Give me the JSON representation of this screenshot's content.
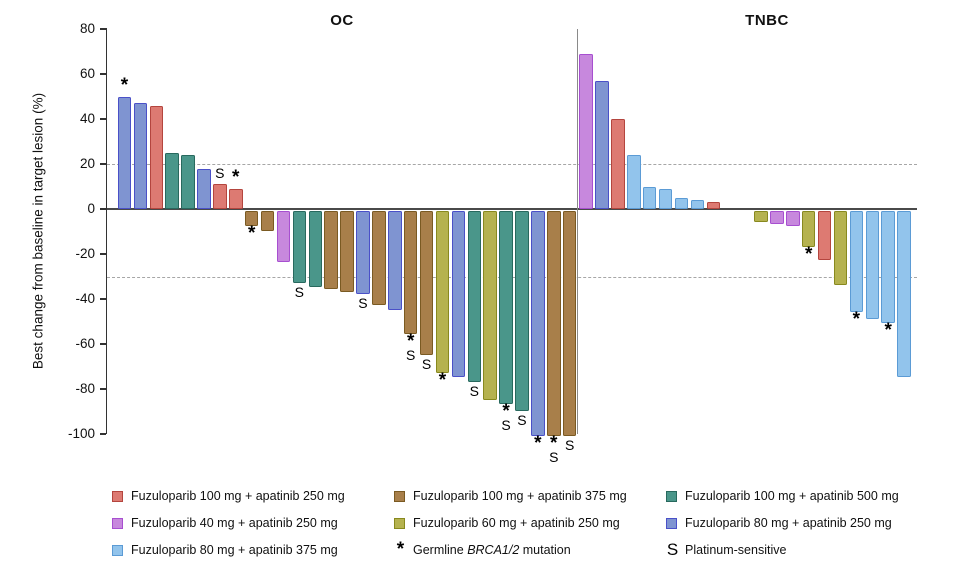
{
  "titles": {
    "left": "OC",
    "right": "TNBC"
  },
  "y_axis": {
    "label": "Best change from baseline in target lesion (%)",
    "ticks": [
      80,
      60,
      40,
      20,
      0,
      -20,
      -40,
      -60,
      -80,
      -100
    ]
  },
  "reference_lines": [
    20,
    -30
  ],
  "doses": {
    "f100a250": {
      "label": "Fuzuloparib 100 mg + apatinib 250 mg",
      "fill": "#dd7a72",
      "border": "#b4453e"
    },
    "f40a250": {
      "label": "Fuzuloparib 40 mg + apatinib 250 mg",
      "fill": "#c788dd",
      "border": "#a74fd0"
    },
    "f80a375": {
      "label": "Fuzuloparib 80 mg + apatinib 375 mg",
      "fill": "#92c4ec",
      "border": "#5b9bd5"
    },
    "f100a375": {
      "label": "Fuzuloparib 100 mg + apatinib 375 mg",
      "fill": "#a87f4a",
      "border": "#7a5a22"
    },
    "f60a250": {
      "label": "Fuzuloparib 60 mg + apatinib 250 mg",
      "fill": "#b5b24f",
      "border": "#88891e"
    },
    "f100a500": {
      "label": "Fuzuloparib 100 mg + apatinib 500 mg",
      "fill": "#4a968a",
      "border": "#28695e"
    },
    "f80a250": {
      "label": "Fuzuloparib 80 mg + apatinib 250 mg",
      "fill": "#7f94d1",
      "border": "#4a50c8"
    }
  },
  "markers": {
    "brca": {
      "symbol": "*",
      "label_prefix": "Germline ",
      "label_italic": "BRCA1/2",
      "label_suffix": " mutation"
    },
    "platinum": {
      "symbol": "S",
      "label": "Platinum-sensitive"
    }
  },
  "legend_columns": [
    [
      "f100a250",
      "f40a250",
      "f80a375"
    ],
    [
      "f100a375",
      "f60a250",
      "marker:brca"
    ],
    [
      "f100a500",
      "f80a250",
      "marker:platinum"
    ]
  ],
  "chart_data": {
    "type": "bar",
    "title": "",
    "ylabel": "Best change from baseline in target lesion (%)",
    "ylim": [
      -100,
      80
    ],
    "grid": "dashed reference lines at +20 and -30",
    "groups": [
      {
        "name": "OC",
        "bars": [
          {
            "value": 50,
            "dose": "f80a250",
            "mark": "*"
          },
          {
            "value": 47,
            "dose": "f80a250"
          },
          {
            "value": 46,
            "dose": "f100a250"
          },
          {
            "value": 25,
            "dose": "f100a500"
          },
          {
            "value": 24,
            "dose": "f100a500"
          },
          {
            "value": 18,
            "dose": "f80a250"
          },
          {
            "value": 11,
            "dose": "f100a250",
            "mark": "S"
          },
          {
            "value": 9,
            "dose": "f100a250",
            "mark": "*"
          },
          {
            "value": -7,
            "dose": "f100a375",
            "mark": "*"
          },
          {
            "value": -9,
            "dose": "f100a375"
          },
          {
            "value": -23,
            "dose": "f40a250"
          },
          {
            "value": -32,
            "dose": "f100a500",
            "mark": "S"
          },
          {
            "value": -34,
            "dose": "f100a500"
          },
          {
            "value": -35,
            "dose": "f100a375"
          },
          {
            "value": -36,
            "dose": "f100a375"
          },
          {
            "value": -37,
            "dose": "f80a250",
            "mark": "S"
          },
          {
            "value": -42,
            "dose": "f100a375"
          },
          {
            "value": -44,
            "dose": "f80a250"
          },
          {
            "value": -55,
            "dose": "f100a375",
            "mark": "*S"
          },
          {
            "value": -64,
            "dose": "f100a375",
            "mark": "S"
          },
          {
            "value": -72,
            "dose": "f60a250",
            "mark": "*"
          },
          {
            "value": -74,
            "dose": "f80a250"
          },
          {
            "value": -76,
            "dose": "f100a500",
            "mark": "S"
          },
          {
            "value": -84,
            "dose": "f60a250"
          },
          {
            "value": -86,
            "dose": "f100a500",
            "mark": "*S"
          },
          {
            "value": -89,
            "dose": "f100a500",
            "mark": "S"
          },
          {
            "value": -100,
            "dose": "f80a250",
            "mark": "*"
          },
          {
            "value": -100,
            "dose": "f100a375",
            "mark": "*S"
          },
          {
            "value": -100,
            "dose": "f100a375",
            "mark": "S"
          }
        ]
      },
      {
        "name": "TNBC",
        "bars": [
          {
            "value": 69,
            "dose": "f40a250"
          },
          {
            "value": 57,
            "dose": "f80a250"
          },
          {
            "value": 40,
            "dose": "f100a250"
          },
          {
            "value": 24,
            "dose": "f80a375"
          },
          {
            "value": 10,
            "dose": "f80a375"
          },
          {
            "value": 9,
            "dose": "f80a375"
          },
          {
            "value": 5,
            "dose": "f80a375"
          },
          {
            "value": 4,
            "dose": "f80a375"
          },
          {
            "value": 3,
            "dose": "f100a250"
          },
          {
            "value": 0
          },
          {
            "value": 0
          },
          {
            "value": -5,
            "dose": "f60a250"
          },
          {
            "value": -6,
            "dose": "f40a250"
          },
          {
            "value": -7,
            "dose": "f40a250"
          },
          {
            "value": -16,
            "dose": "f60a250",
            "mark": "*"
          },
          {
            "value": -22,
            "dose": "f100a250"
          },
          {
            "value": -33,
            "dose": "f60a250"
          },
          {
            "value": -45,
            "dose": "f80a375",
            "mark": "*"
          },
          {
            "value": -48,
            "dose": "f80a375"
          },
          {
            "value": -50,
            "dose": "f80a375",
            "mark": "*"
          },
          {
            "value": -74,
            "dose": "f80a375"
          }
        ]
      }
    ]
  }
}
